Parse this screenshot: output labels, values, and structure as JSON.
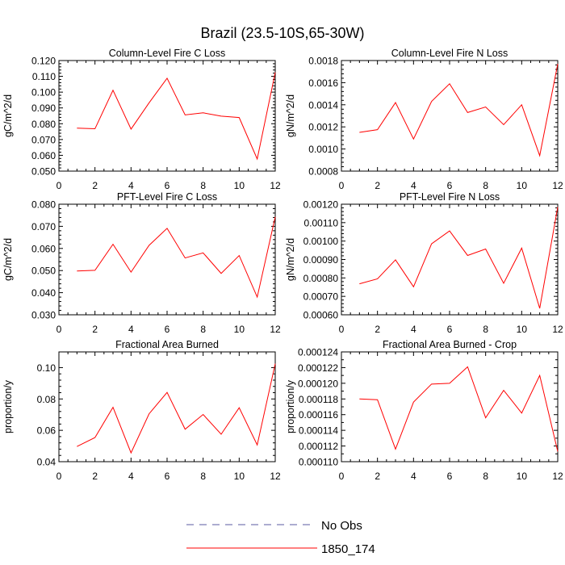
{
  "figure": {
    "title": "Brazil (23.5-10S,65-30W)"
  },
  "legend": {
    "entries": [
      "No Obs",
      "1850_174"
    ]
  },
  "colors": {
    "series_line": "#ff0000",
    "obs_line": "#5a5aa0",
    "axis": "#000000"
  },
  "chart_data": [
    {
      "type": "line",
      "title": "Column-Level Fire C Loss",
      "ylabel": "gC/m^2/d",
      "xlim": [
        0,
        12
      ],
      "ylim": [
        0.05,
        0.12
      ],
      "xticks": [
        0,
        2,
        4,
        6,
        8,
        10,
        12
      ],
      "xtick_labels": [
        "0",
        "2",
        "4",
        "6",
        "8",
        "10",
        "12"
      ],
      "yticks": [
        0.05,
        0.06,
        0.07,
        0.08,
        0.09,
        0.1,
        0.11,
        0.12
      ],
      "ytick_labels": [
        "0.050",
        "0.060",
        "0.070",
        "0.080",
        "0.090",
        "0.100",
        "0.110",
        "0.120"
      ],
      "yminor_count": 4,
      "series": [
        {
          "name": "1850_174",
          "x": [
            1,
            2,
            3,
            4,
            5,
            6,
            7,
            8,
            9,
            10,
            11,
            12
          ],
          "values": [
            0.0772,
            0.0768,
            0.1012,
            0.0766,
            0.0932,
            0.1088,
            0.0856,
            0.0869,
            0.0848,
            0.0839,
            0.0577,
            0.1125
          ]
        }
      ]
    },
    {
      "type": "line",
      "title": "Column-Level Fire N Loss",
      "ylabel": "gN/m^2/d",
      "xlim": [
        0,
        12
      ],
      "ylim": [
        0.0008,
        0.0018
      ],
      "xticks": [
        0,
        2,
        4,
        6,
        8,
        10,
        12
      ],
      "xtick_labels": [
        "0",
        "2",
        "4",
        "6",
        "8",
        "10",
        "12"
      ],
      "yticks": [
        0.0008,
        0.001,
        0.0012,
        0.0014,
        0.0016,
        0.0018
      ],
      "ytick_labels": [
        "0.0008",
        "0.0010",
        "0.0012",
        "0.0014",
        "0.0016",
        "0.0018"
      ],
      "yminor_count": 4,
      "series": [
        {
          "name": "1850_174",
          "x": [
            1,
            2,
            3,
            4,
            5,
            6,
            7,
            8,
            9,
            10,
            11,
            12
          ],
          "values": [
            0.00115,
            0.001175,
            0.00142,
            0.00109,
            0.00143,
            0.00159,
            0.00133,
            0.00138,
            0.00122,
            0.0014,
            0.00094,
            0.00177
          ]
        }
      ]
    },
    {
      "type": "line",
      "title": "PFT-Level Fire C Loss",
      "ylabel": "gC/m^2/d",
      "xlim": [
        0,
        12
      ],
      "ylim": [
        0.03,
        0.08
      ],
      "xticks": [
        0,
        2,
        4,
        6,
        8,
        10,
        12
      ],
      "xtick_labels": [
        "0",
        "2",
        "4",
        "6",
        "8",
        "10",
        "12"
      ],
      "yticks": [
        0.03,
        0.04,
        0.05,
        0.06,
        0.07,
        0.08
      ],
      "ytick_labels": [
        "0.030",
        "0.040",
        "0.050",
        "0.060",
        "0.070",
        "0.080"
      ],
      "yminor_count": 4,
      "series": [
        {
          "name": "1850_174",
          "x": [
            1,
            2,
            3,
            4,
            5,
            6,
            7,
            8,
            9,
            10,
            11,
            12
          ],
          "values": [
            0.0498,
            0.0501,
            0.0619,
            0.0493,
            0.0614,
            0.0691,
            0.0557,
            0.058,
            0.0487,
            0.0568,
            0.038,
            0.0743
          ]
        }
      ]
    },
    {
      "type": "line",
      "title": "PFT-Level Fire N Loss",
      "ylabel": "gN/m^2/d",
      "xlim": [
        0,
        12
      ],
      "ylim": [
        0.0006,
        0.0012
      ],
      "xticks": [
        0,
        2,
        4,
        6,
        8,
        10,
        12
      ],
      "xtick_labels": [
        "0",
        "2",
        "4",
        "6",
        "8",
        "10",
        "12"
      ],
      "yticks": [
        0.0006,
        0.0007,
        0.0008,
        0.0009,
        0.001,
        0.0011,
        0.0012
      ],
      "ytick_labels": [
        "0.00060",
        "0.00070",
        "0.00080",
        "0.00090",
        "0.00100",
        "0.00110",
        "0.00120"
      ],
      "yminor_count": 4,
      "series": [
        {
          "name": "1850_174",
          "x": [
            1,
            2,
            3,
            4,
            5,
            6,
            7,
            8,
            9,
            10,
            11,
            12
          ],
          "values": [
            0.000768,
            0.000795,
            0.000898,
            0.000752,
            0.000985,
            0.001055,
            0.000922,
            0.000957,
            0.000771,
            0.000962,
            0.000635,
            0.001185
          ]
        }
      ]
    },
    {
      "type": "line",
      "title": "Fractional Area Burned",
      "ylabel": "proportion/y",
      "xlim": [
        0,
        12
      ],
      "ylim": [
        0.04,
        0.11
      ],
      "xticks": [
        0,
        2,
        4,
        6,
        8,
        10,
        12
      ],
      "xtick_labels": [
        "0",
        "2",
        "4",
        "6",
        "8",
        "10",
        "12"
      ],
      "yticks": [
        0.04,
        0.06,
        0.08,
        0.1
      ],
      "ytick_labels": [
        "0.04",
        "0.06",
        "0.08",
        "0.10"
      ],
      "yminor_count": 4,
      "series": [
        {
          "name": "1850_174",
          "x": [
            1,
            2,
            3,
            4,
            5,
            6,
            7,
            8,
            9,
            10,
            11,
            12
          ],
          "values": [
            0.0497,
            0.0554,
            0.0747,
            0.0456,
            0.0705,
            0.0842,
            0.0607,
            0.0701,
            0.0575,
            0.0744,
            0.0507,
            0.1025
          ]
        }
      ]
    },
    {
      "type": "line",
      "title": "Fractional Area Burned - Crop",
      "ylabel": "proportion/y",
      "xlim": [
        0,
        12
      ],
      "ylim": [
        0.00011,
        0.000124
      ],
      "xticks": [
        0,
        2,
        4,
        6,
        8,
        10,
        12
      ],
      "xtick_labels": [
        "0",
        "2",
        "4",
        "6",
        "8",
        "10",
        "12"
      ],
      "yticks": [
        0.00011,
        0.000112,
        0.000114,
        0.000116,
        0.000118,
        0.00012,
        0.000122,
        0.000124
      ],
      "ytick_labels": [
        "0.000110",
        "0.000112",
        "0.000114",
        "0.000116",
        "0.000118",
        "0.000120",
        "0.000122",
        "0.000124"
      ],
      "yminor_count": 1,
      "series": [
        {
          "name": "1850_174",
          "x": [
            1,
            2,
            3,
            4,
            5,
            6,
            7,
            8,
            9,
            10,
            11,
            12
          ],
          "values": [
            0.000118,
            0.0001179,
            0.0001116,
            0.0001176,
            0.0001199,
            0.00012,
            0.0001221,
            0.0001156,
            0.0001191,
            0.0001162,
            0.000121,
            0.0001113
          ]
        }
      ]
    }
  ]
}
